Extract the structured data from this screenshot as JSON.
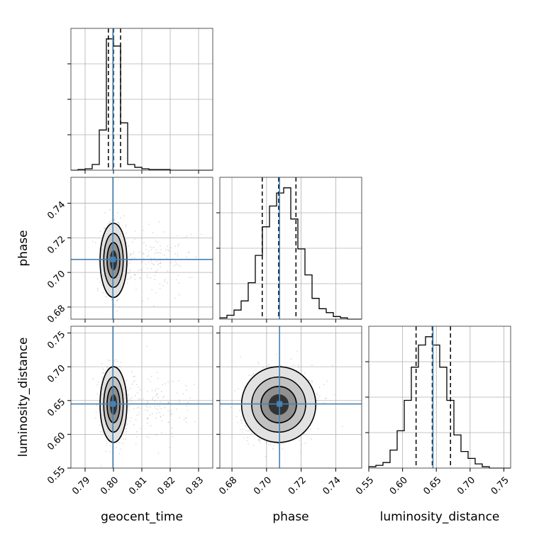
{
  "chart_data": {
    "type": "corner",
    "parameters": [
      "geocent_time",
      "phase",
      "luminosity_distance"
    ],
    "truths": [
      0.7998,
      0.7075,
      0.645
    ],
    "quantiles": [
      [
        0.7982,
        0.8,
        0.8025
      ],
      [
        0.6975,
        0.707,
        0.717
      ],
      [
        0.62,
        0.644,
        0.671
      ]
    ],
    "ranges": [
      [
        0.785,
        0.835
      ],
      [
        0.673,
        0.755
      ],
      [
        0.55,
        0.76
      ]
    ],
    "ticks": [
      {
        "values": [
          0.79,
          0.8,
          0.81,
          0.82,
          0.83
        ],
        "labels": [
          "0.79",
          "0.80",
          "0.81",
          "0.82",
          "0.83"
        ]
      },
      {
        "values": [
          0.68,
          0.7,
          0.72,
          0.74
        ],
        "labels": [
          "0.68",
          "0.70",
          "0.72",
          "0.74"
        ]
      },
      {
        "values": [
          0.55,
          0.6,
          0.65,
          0.7,
          0.75
        ],
        "labels": [
          "0.55",
          "0.60",
          "0.65",
          "0.70",
          "0.75"
        ]
      }
    ],
    "histograms": [
      {
        "edges": [
          0.785,
          0.7875,
          0.79,
          0.7925,
          0.795,
          0.7975,
          0.8,
          0.8025,
          0.805,
          0.8075,
          0.81,
          0.8125,
          0.815,
          0.8175,
          0.82,
          0.8225,
          0.825,
          0.8275,
          0.83,
          0.8325,
          0.835
        ],
        "counts": [
          0,
          1,
          2,
          8,
          56,
          183,
          173,
          66,
          8,
          4,
          2,
          1,
          1,
          1,
          0,
          0,
          0,
          0,
          0,
          0
        ]
      },
      {
        "edges": [
          0.673,
          0.6771,
          0.6812,
          0.6853,
          0.6894,
          0.6935,
          0.6976,
          0.7017,
          0.7058,
          0.7099,
          0.714,
          0.7181,
          0.7222,
          0.7263,
          0.7304,
          0.7345,
          0.7386,
          0.7427,
          0.7468,
          0.7509,
          0.755
        ],
        "counts": [
          1,
          3,
          7,
          14,
          28,
          49,
          71,
          87,
          97,
          101,
          77,
          54,
          34,
          16,
          8,
          5,
          2,
          1,
          0,
          0
        ]
      },
      {
        "edges": [
          0.55,
          0.5605,
          0.571,
          0.5815,
          0.592,
          0.6025,
          0.613,
          0.6235,
          0.634,
          0.6445,
          0.655,
          0.6655,
          0.676,
          0.6865,
          0.697,
          0.7075,
          0.718,
          0.7285,
          0.739,
          0.7495,
          0.76
        ],
        "counts": [
          1,
          2,
          4,
          13,
          27,
          49,
          73,
          89,
          95,
          89,
          73,
          49,
          24,
          12,
          7,
          3,
          1,
          0,
          0,
          0
        ]
      }
    ],
    "colors": {
      "truth": "#4682b4",
      "line": "#000000",
      "grid": "#b0b0b0",
      "points": "#9a9a9a"
    }
  }
}
